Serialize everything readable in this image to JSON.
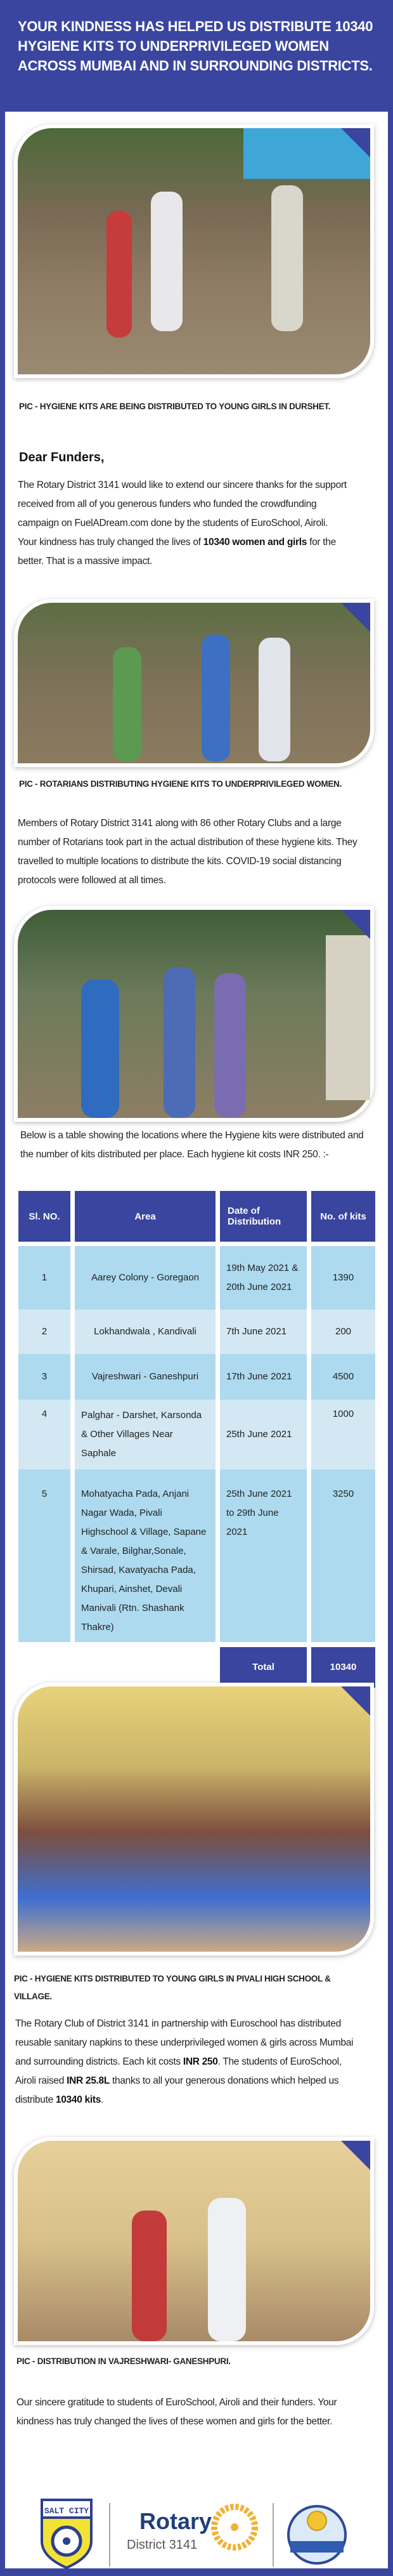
{
  "header": {
    "title_lines": [
      "Your kindness has helped us distribute 10340 hygiene",
      "kits to underprivileged women across Mumbai and in",
      "surrounding districts."
    ]
  },
  "photos": [
    {
      "caption": "PIC - HYGIENE KITS ARE BEING DISTRIBUTED TO YOUNG GIRLS IN DURSHET."
    },
    {
      "caption": "PIC - ROTARIANS DISTRIBUTING HYGIENE KITS TO UNDERPRIVILEGED WOMEN."
    },
    {
      "caption": ""
    },
    {
      "caption": "PIC - HYGIENE KITS DISTRIBUTED TO YOUNG GIRLS IN PIVALI HIGH SCHOOL & VILLAGE."
    },
    {
      "caption": "PIC - DISTRIBUTION IN VAJRESHWARI- GANESHPURI."
    }
  ],
  "letter": {
    "greeting": "Dear Funders,",
    "p1_a": "The Rotary District 3141 would like to extend our sincere thanks for the support received from all of you generous funders who funded the crowdfunding campaign on FuelADream.com done by the students of EuroSchool, Airoli. Your kindness has truly changed the lives of ",
    "p1_bold": "10340 women and girls",
    "p1_b": " for the better. That is a massive impact.",
    "p2": "Members of Rotary District 3141 along with 86 other Rotary Clubs and a large number of Rotarians took part in the actual distribution of these hygiene kits. They travelled to multiple locations to distribute the kits. COVID-19 social distancing protocols were followed at all times.",
    "p3": "Below is a table showing the locations where the Hygiene kits were distributed and the number of kits distributed per place. Each hygiene kit costs INR 250. :-",
    "p4_a": "The Rotary Club of District 3141 in partnership with Euroschool has distributed reusable sanitary napkins to these underprivileged women & girls across Mumbai and surrounding districts. Each kit costs ",
    "p4_b1": "INR 250",
    "p4_c": ". The students of EuroSchool, Airoli raised ",
    "p4_b2": "INR 25.8L",
    "p4_d": " thanks to all your generous donations which helped us distribute ",
    "p4_b3": "10340 kits",
    "p4_e": ".",
    "p5": "Our sincere gratitude to students of EuroSchool, Airoli and their funders. Your kindness has truly changed the lives of these women and girls for the better."
  },
  "table": {
    "headers": [
      "Sl. NO.",
      "Area",
      "Date of Distribution",
      "No. of kits"
    ],
    "rows": [
      {
        "sl": "1",
        "area": "Aarey Colony - Goregaon",
        "date": "19th May 2021 & 20th June 2021",
        "kits": "1390"
      },
      {
        "sl": "2",
        "area": "Lokhandwala , Kandivali",
        "date": "7th June 2021",
        "kits": "200"
      },
      {
        "sl": "3",
        "area": "Vajreshwari - Ganeshpuri",
        "date": "17th June 2021",
        "kits": "4500"
      },
      {
        "sl": "4",
        "area": "Palghar - Darshet, Karsonda & Other Villages Near Saphale",
        "date": "25th June 2021",
        "kits": "1000"
      },
      {
        "sl": "5",
        "area": "Mohatyacha Pada, Anjani Nagar Wada, Pivali Highschool & Village, Sapane & Varale, Bilghar,Sonale, Shirsad, Kavatyacha Pada, Khupari, Ainshet, Devali Manivali (Rtn. Shashank Thakre)",
        "date": "25th June 2021 to 29th June 2021",
        "kits": "3250"
      }
    ],
    "total_label": "Total",
    "total_value": "10340"
  },
  "footer": {
    "logo_left": "SALT CITY 3141",
    "rotary_word": "Rotary",
    "rotary_district": "District 3141"
  },
  "colors": {
    "brand": "#3a45a0",
    "row_a": "#addaef",
    "row_b": "#d3e8f2",
    "rotary_gold": "#f2b134",
    "rotary_navy": "#1f3f7a"
  }
}
